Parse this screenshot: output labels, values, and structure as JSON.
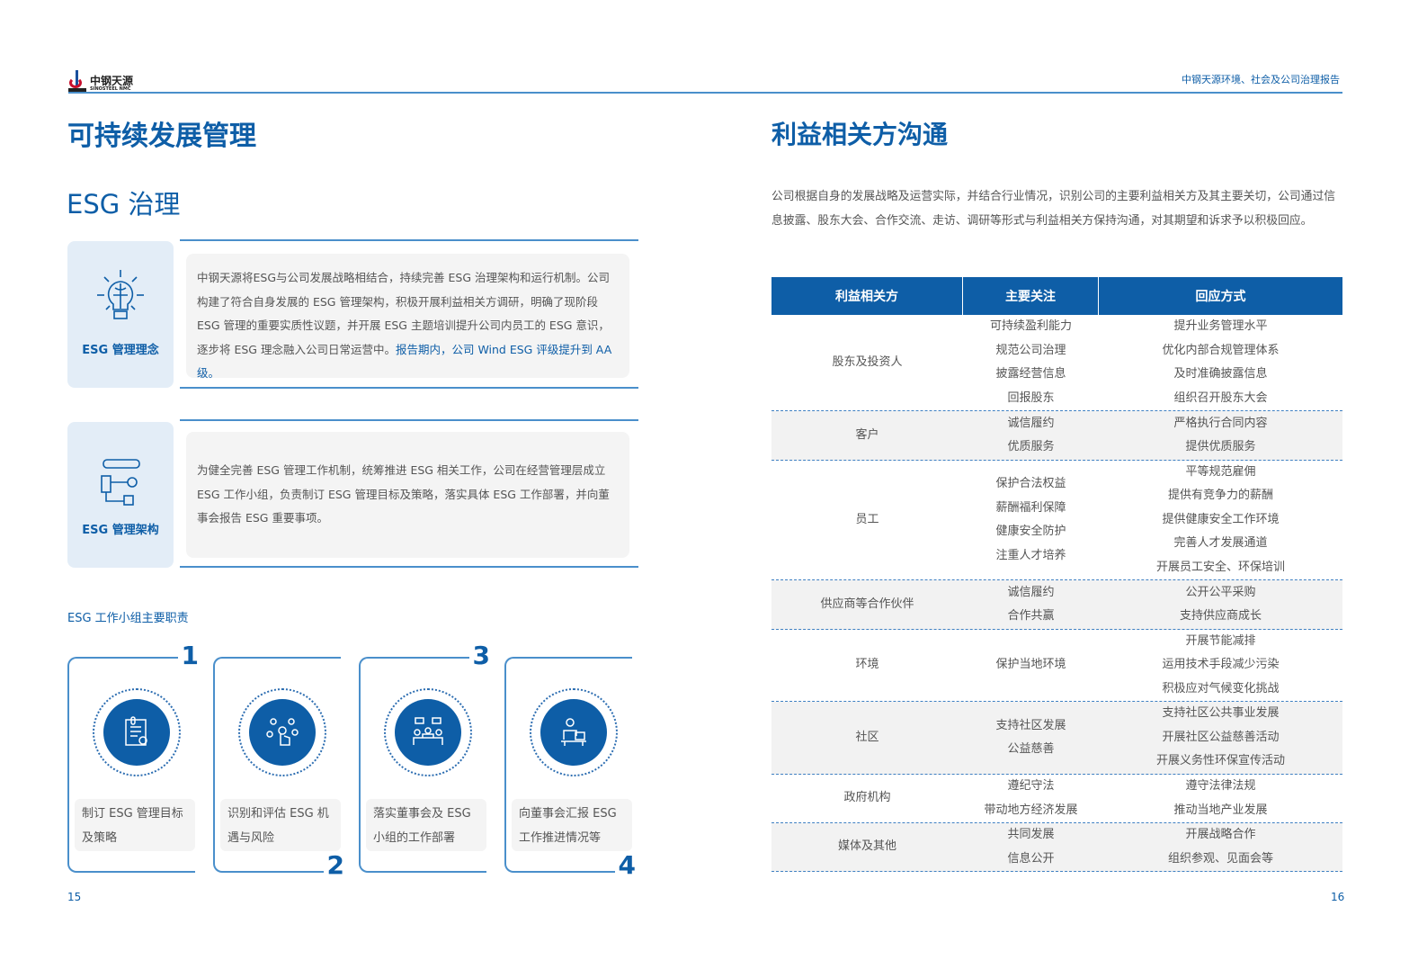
{
  "header": {
    "logo_cn": "中钢天源",
    "logo_en": "SINOSTEEL NMC",
    "logo_mark": "SINOSTEEL",
    "report_title": "中钢天源环境、社会及公司治理报告"
  },
  "left": {
    "title": "可持续发展管理",
    "subtitle": "ESG 治理",
    "blocks": [
      {
        "label": "ESG 管理理念",
        "icon": "lightbulb-icon",
        "text": "中钢天源将ESG与公司发展战略相结合，持续完善 ESG 治理架构和运行机制。公司构建了符合自身发展的 ESG 管理架构，积极开展利益相关方调研，明确了现阶段 ESG 管理的重要实质性议题，并开展 ESG 主题培训提升公司内员工的 ESG 意识，逐步将 ESG 理念融入公司日常运营中。",
        "highlight": "报告期内，公司 Wind ESG 评级提升到 AA 级。"
      },
      {
        "label": "ESG 管理架构",
        "icon": "org-structure-icon",
        "text": "为健全完善 ESG 管理工作机制，统筹推进 ESG 相关工作，公司在经营管理层成立 ESG 工作小组，负责制订 ESG 管理目标及策略，落实具体 ESG 工作部署，并向董事会报告 ESG 重要事项。"
      }
    ],
    "duties_title": "ESG 工作小组主要职责",
    "duties": [
      {
        "num": "1",
        "icon": "certificate-document-icon",
        "text": "制订 ESG 管理目标及策略"
      },
      {
        "num": "2",
        "icon": "touch-network-icon",
        "text": "识别和评估 ESG 机遇与风险"
      },
      {
        "num": "3",
        "icon": "meeting-icon",
        "text": "落实董事会及 ESG 小组的工作部署"
      },
      {
        "num": "4",
        "icon": "presenter-laptop-icon",
        "text": "向董事会汇报 ESG 工作推进情况等"
      }
    ],
    "page": "15"
  },
  "right": {
    "title": "利益相关方沟通",
    "intro": "公司根据自身的发展战略及运营实际，并结合行业情况，识别公司的主要利益相关方及其主要关切，公司通过信息披露、股东大会、合作交流、走访、调研等形式与利益相关方保持沟通，对其期望和诉求予以积极回应。",
    "table": {
      "headers": [
        "利益相关方",
        "主要关注",
        "回应方式"
      ],
      "rows": [
        {
          "party": "股东及投资人",
          "concerns": [
            "可持续盈利能力",
            "规范公司治理",
            "披露经营信息",
            "回报股东"
          ],
          "responses": [
            "提升业务管理水平",
            "优化内部合规管理体系",
            "及时准确披露信息",
            "组织召开股东大会"
          ]
        },
        {
          "party": "客户",
          "concerns": [
            "诚信履约",
            "优质服务"
          ],
          "responses": [
            "严格执行合同内容",
            "提供优质服务"
          ]
        },
        {
          "party": "员工",
          "concerns": [
            "保护合法权益",
            "薪酬福利保障",
            "健康安全防护",
            "注重人才培养"
          ],
          "responses": [
            "平等规范雇佣",
            "提供有竞争力的薪酬",
            "提供健康安全工作环境",
            "完善人才发展通道",
            "开展员工安全、环保培训"
          ]
        },
        {
          "party": "供应商等合作伙伴",
          "concerns": [
            "诚信履约",
            "合作共赢"
          ],
          "responses": [
            "公开公平采购",
            "支持供应商成长"
          ]
        },
        {
          "party": "环境",
          "concerns": [
            "保护当地环境"
          ],
          "responses": [
            "开展节能减排",
            "运用技术手段减少污染",
            "积极应对气候变化挑战"
          ]
        },
        {
          "party": "社区",
          "concerns": [
            "支持社区发展",
            "公益慈善"
          ],
          "responses": [
            "支持社区公共事业发展",
            "开展社区公益慈善活动",
            "开展义务性环保宣传活动"
          ]
        },
        {
          "party": "政府机构",
          "concerns": [
            "遵纪守法",
            "带动地方经济发展"
          ],
          "responses": [
            "遵守法律法规",
            "推动当地产业发展"
          ]
        },
        {
          "party": "媒体及其他",
          "concerns": [
            "共同发展",
            "信息公开"
          ],
          "responses": [
            "开展战略合作",
            "组织参观、见面会等"
          ]
        }
      ]
    },
    "page": "16"
  },
  "colors": {
    "primary": "#0e5ea7",
    "line": "#4a8fcb",
    "panel": "#e3edf7",
    "box": "#f4f4f4"
  }
}
